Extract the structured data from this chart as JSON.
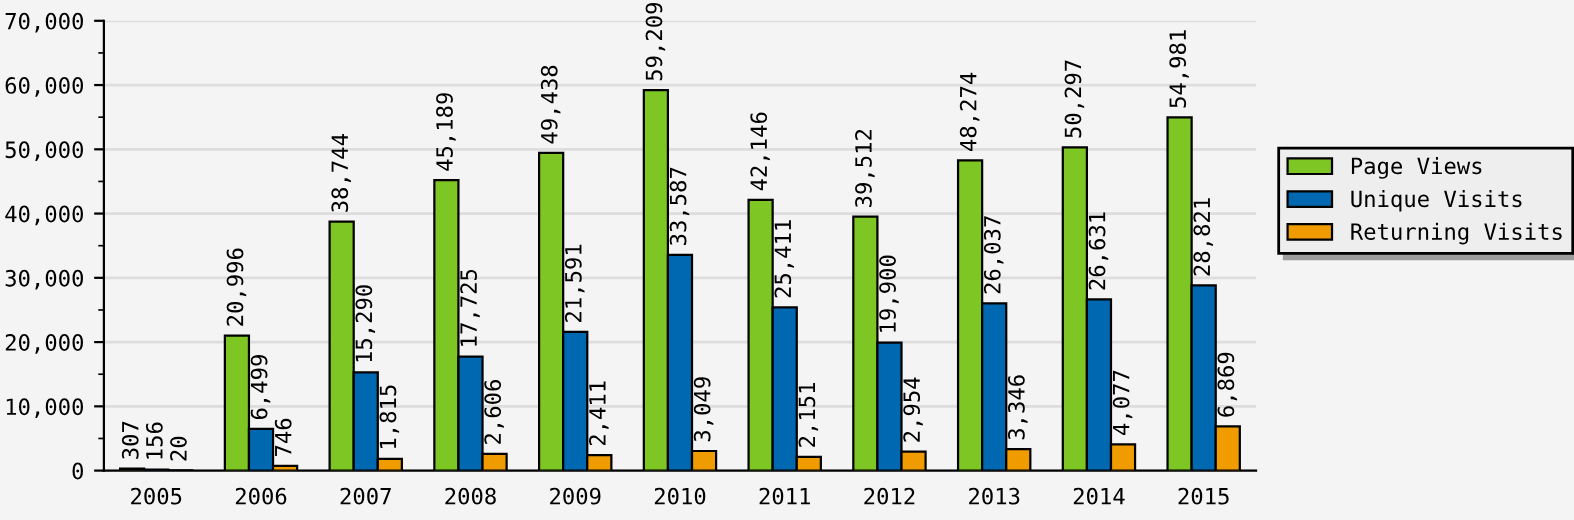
{
  "chart_data": {
    "type": "bar",
    "categories": [
      "2005",
      "2006",
      "2007",
      "2008",
      "2009",
      "2010",
      "2011",
      "2012",
      "2013",
      "2014",
      "2015"
    ],
    "series": [
      {
        "name": "Page Views",
        "color": "#7dc623",
        "values": [
          307,
          20996,
          38744,
          45189,
          49438,
          59209,
          42146,
          39512,
          48274,
          50297,
          54981
        ],
        "value_labels": [
          "307",
          "20,996",
          "38,744",
          "45,189",
          "49,438",
          "59,209",
          "42,146",
          "39,512",
          "48,274",
          "50,297",
          "54,981"
        ]
      },
      {
        "name": "Unique Visits",
        "color": "#0068b0",
        "values": [
          156,
          6499,
          15290,
          17725,
          21591,
          33587,
          25411,
          19900,
          26037,
          26631,
          28821
        ],
        "value_labels": [
          "156",
          "6,499",
          "15,290",
          "17,725",
          "21,591",
          "33,587",
          "25,411",
          "19,900",
          "26,037",
          "26,631",
          "28,821"
        ]
      },
      {
        "name": "Returning Visits",
        "color": "#f09c00",
        "values": [
          20,
          746,
          1815,
          2606,
          2411,
          3049,
          2151,
          2954,
          3346,
          4077,
          6869
        ],
        "value_labels": [
          "20",
          "746",
          "1,815",
          "2,606",
          "2,411",
          "3,049",
          "2,151",
          "2,954",
          "3,346",
          "4,077",
          "6,869"
        ]
      }
    ],
    "ylim": [
      0,
      70000
    ],
    "yticks": [
      {
        "value": 0,
        "label": "0"
      },
      {
        "value": 10000,
        "label": "10,000"
      },
      {
        "value": 20000,
        "label": "20,000"
      },
      {
        "value": 30000,
        "label": "30,000"
      },
      {
        "value": 40000,
        "label": "40,000"
      },
      {
        "value": 50000,
        "label": "50,000"
      },
      {
        "value": 60000,
        "label": "60,000"
      },
      {
        "value": 70000,
        "label": "70,000"
      }
    ],
    "grid": "y",
    "legend": "right"
  }
}
